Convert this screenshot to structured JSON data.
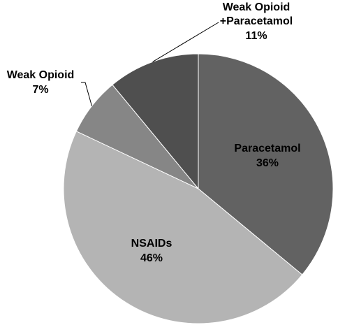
{
  "chart_data": {
    "type": "pie",
    "title": "",
    "categories": [
      "Paracetamol",
      "NSAIDs",
      "Weak Opioid",
      "Weak Opioid +Paracetamol"
    ],
    "values": [
      36,
      46,
      7,
      11
    ],
    "unit": "%",
    "colors": [
      "#626262",
      "#b4b4b4",
      "#868686",
      "#4f4f4f"
    ],
    "slices": [
      {
        "name_lines": [
          "Paracetamol"
        ],
        "pct_label": "36%"
      },
      {
        "name_lines": [
          "NSAIDs"
        ],
        "pct_label": "46%"
      },
      {
        "name_lines": [
          "Weak Opioid"
        ],
        "pct_label": "7%"
      },
      {
        "name_lines": [
          "Weak Opioid",
          "+Paracetamol"
        ],
        "pct_label": "11%"
      }
    ],
    "legend": "none",
    "start": "12 o'clock",
    "direction": "clockwise"
  }
}
